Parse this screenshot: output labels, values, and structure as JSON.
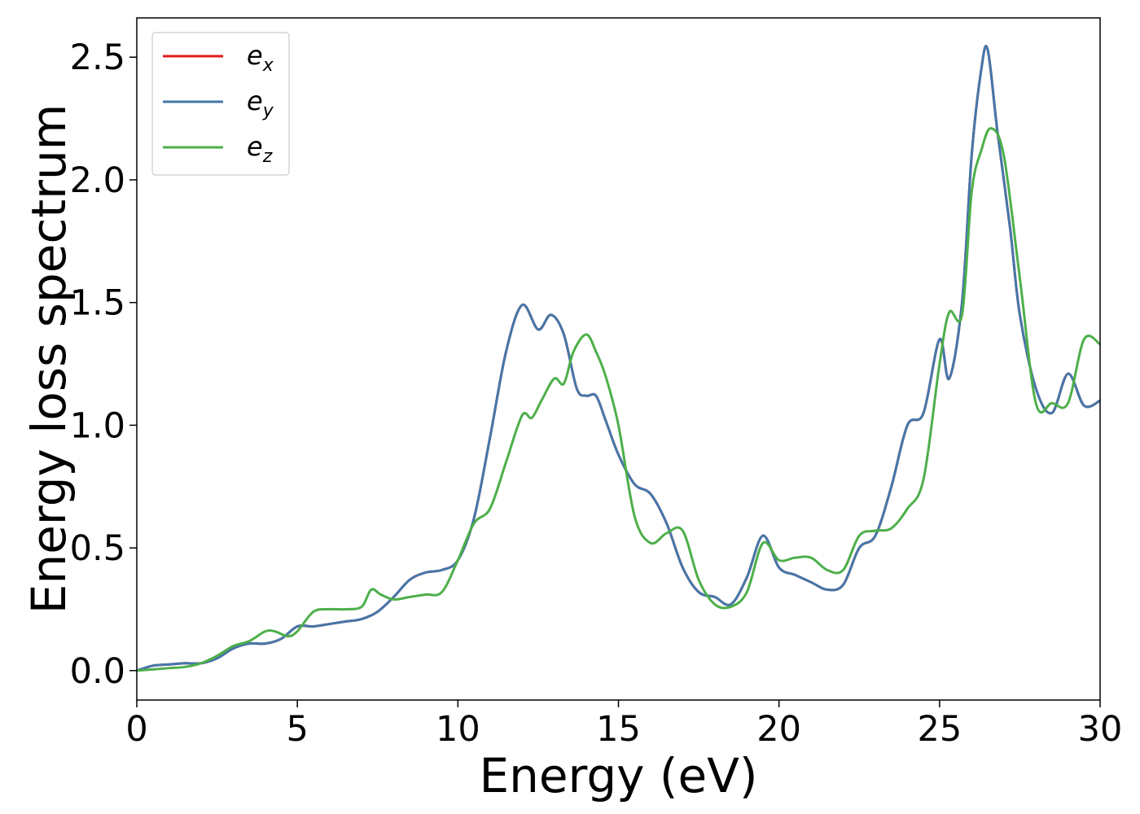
{
  "chart_data": {
    "type": "line",
    "title": "",
    "xlabel": "Energy (eV)",
    "ylabel": "Energy loss spectrum",
    "xlim": [
      0,
      30
    ],
    "ylim": [
      -0.12,
      2.66
    ],
    "xticks": [
      0,
      5,
      10,
      15,
      20,
      25,
      30
    ],
    "xtick_labels": [
      "0",
      "5",
      "10",
      "15",
      "20",
      "25",
      "30"
    ],
    "yticks": [
      0.0,
      0.5,
      1.0,
      1.5,
      2.0,
      2.5
    ],
    "ytick_labels": [
      "0.0",
      "0.5",
      "1.0",
      "1.5",
      "2.0",
      "2.5"
    ],
    "grid": false,
    "legend_position": "top-left",
    "series": [
      {
        "name": "e_x",
        "legend_base": "e",
        "legend_sub": "x",
        "color": "#e41a1c",
        "x": [
          0,
          0.5,
          1,
          1.5,
          2,
          2.5,
          3,
          3.5,
          4,
          4.5,
          5,
          5.5,
          6,
          6.5,
          7,
          7.5,
          8,
          8.5,
          9,
          9.5,
          10,
          10.5,
          11,
          11.5,
          12,
          12.5,
          12.9,
          13.3,
          13.7,
          14,
          14.3,
          14.6,
          15,
          15.5,
          16,
          16.5,
          17,
          17.5,
          18,
          18.5,
          19,
          19.5,
          20,
          20.5,
          21,
          21.5,
          22,
          22.5,
          23,
          23.5,
          24,
          24.5,
          25,
          25.3,
          25.7,
          26,
          26.3,
          26.5,
          26.8,
          27.2,
          27.5,
          28,
          28.5,
          29,
          29.5,
          30
        ],
        "y": [
          0.0,
          0.02,
          0.025,
          0.03,
          0.03,
          0.05,
          0.09,
          0.11,
          0.11,
          0.13,
          0.18,
          0.18,
          0.19,
          0.2,
          0.21,
          0.24,
          0.3,
          0.37,
          0.4,
          0.41,
          0.45,
          0.62,
          0.95,
          1.3,
          1.49,
          1.39,
          1.45,
          1.37,
          1.15,
          1.12,
          1.12,
          1.02,
          0.88,
          0.76,
          0.72,
          0.6,
          0.42,
          0.32,
          0.3,
          0.27,
          0.38,
          0.55,
          0.42,
          0.39,
          0.36,
          0.33,
          0.35,
          0.5,
          0.55,
          0.75,
          1.0,
          1.05,
          1.35,
          1.19,
          1.5,
          2.1,
          2.45,
          2.53,
          2.2,
          1.8,
          1.45,
          1.15,
          1.05,
          1.21,
          1.08,
          1.1
        ]
      },
      {
        "name": "e_y",
        "legend_base": "e",
        "legend_sub": "y",
        "color": "#4477aa",
        "x": [
          0,
          0.5,
          1,
          1.5,
          2,
          2.5,
          3,
          3.5,
          4,
          4.5,
          5,
          5.5,
          6,
          6.5,
          7,
          7.5,
          8,
          8.5,
          9,
          9.5,
          10,
          10.5,
          11,
          11.5,
          12,
          12.5,
          12.9,
          13.3,
          13.7,
          14,
          14.3,
          14.6,
          15,
          15.5,
          16,
          16.5,
          17,
          17.5,
          18,
          18.5,
          19,
          19.5,
          20,
          20.5,
          21,
          21.5,
          22,
          22.5,
          23,
          23.5,
          24,
          24.5,
          25,
          25.3,
          25.7,
          26,
          26.3,
          26.5,
          26.8,
          27.2,
          27.5,
          28,
          28.5,
          29,
          29.5,
          30
        ],
        "y": [
          0.0,
          0.02,
          0.025,
          0.03,
          0.03,
          0.05,
          0.09,
          0.11,
          0.11,
          0.13,
          0.18,
          0.18,
          0.19,
          0.2,
          0.21,
          0.24,
          0.3,
          0.37,
          0.4,
          0.41,
          0.45,
          0.62,
          0.95,
          1.3,
          1.49,
          1.39,
          1.45,
          1.37,
          1.15,
          1.12,
          1.12,
          1.02,
          0.88,
          0.76,
          0.72,
          0.6,
          0.42,
          0.32,
          0.3,
          0.27,
          0.38,
          0.55,
          0.42,
          0.39,
          0.36,
          0.33,
          0.35,
          0.5,
          0.55,
          0.75,
          1.0,
          1.05,
          1.35,
          1.19,
          1.5,
          2.1,
          2.45,
          2.53,
          2.2,
          1.8,
          1.45,
          1.15,
          1.05,
          1.21,
          1.08,
          1.1
        ]
      },
      {
        "name": "e_z",
        "legend_base": "e",
        "legend_sub": "z",
        "color": "#4daf4a",
        "x": [
          0,
          0.5,
          1,
          1.5,
          2,
          2.5,
          3,
          3.5,
          4,
          4.3,
          4.7,
          5,
          5.5,
          6,
          6.5,
          7,
          7.3,
          7.6,
          8,
          8.5,
          9,
          9.5,
          10,
          10.5,
          11,
          11.5,
          12,
          12.3,
          12.6,
          13,
          13.3,
          13.6,
          14,
          14.3,
          14.6,
          15,
          15.5,
          16,
          16.5,
          17,
          17.5,
          18,
          18.5,
          19,
          19.5,
          20,
          20.5,
          21,
          21.5,
          22,
          22.5,
          23,
          23.5,
          24,
          24.5,
          25,
          25.3,
          25.7,
          26,
          26.3,
          26.6,
          27,
          27.5,
          28,
          28.5,
          29,
          29.5,
          30
        ],
        "y": [
          0.0,
          0.005,
          0.01,
          0.015,
          0.03,
          0.06,
          0.1,
          0.12,
          0.16,
          0.16,
          0.14,
          0.16,
          0.24,
          0.25,
          0.25,
          0.26,
          0.33,
          0.31,
          0.29,
          0.3,
          0.31,
          0.32,
          0.45,
          0.6,
          0.66,
          0.85,
          1.04,
          1.03,
          1.1,
          1.19,
          1.17,
          1.3,
          1.37,
          1.3,
          1.2,
          1.0,
          0.63,
          0.52,
          0.56,
          0.57,
          0.37,
          0.27,
          0.26,
          0.32,
          0.52,
          0.45,
          0.46,
          0.46,
          0.41,
          0.41,
          0.55,
          0.57,
          0.58,
          0.66,
          0.78,
          1.25,
          1.46,
          1.45,
          1.95,
          2.12,
          2.21,
          2.1,
          1.6,
          1.09,
          1.09,
          1.09,
          1.35,
          1.33
        ]
      }
    ]
  }
}
